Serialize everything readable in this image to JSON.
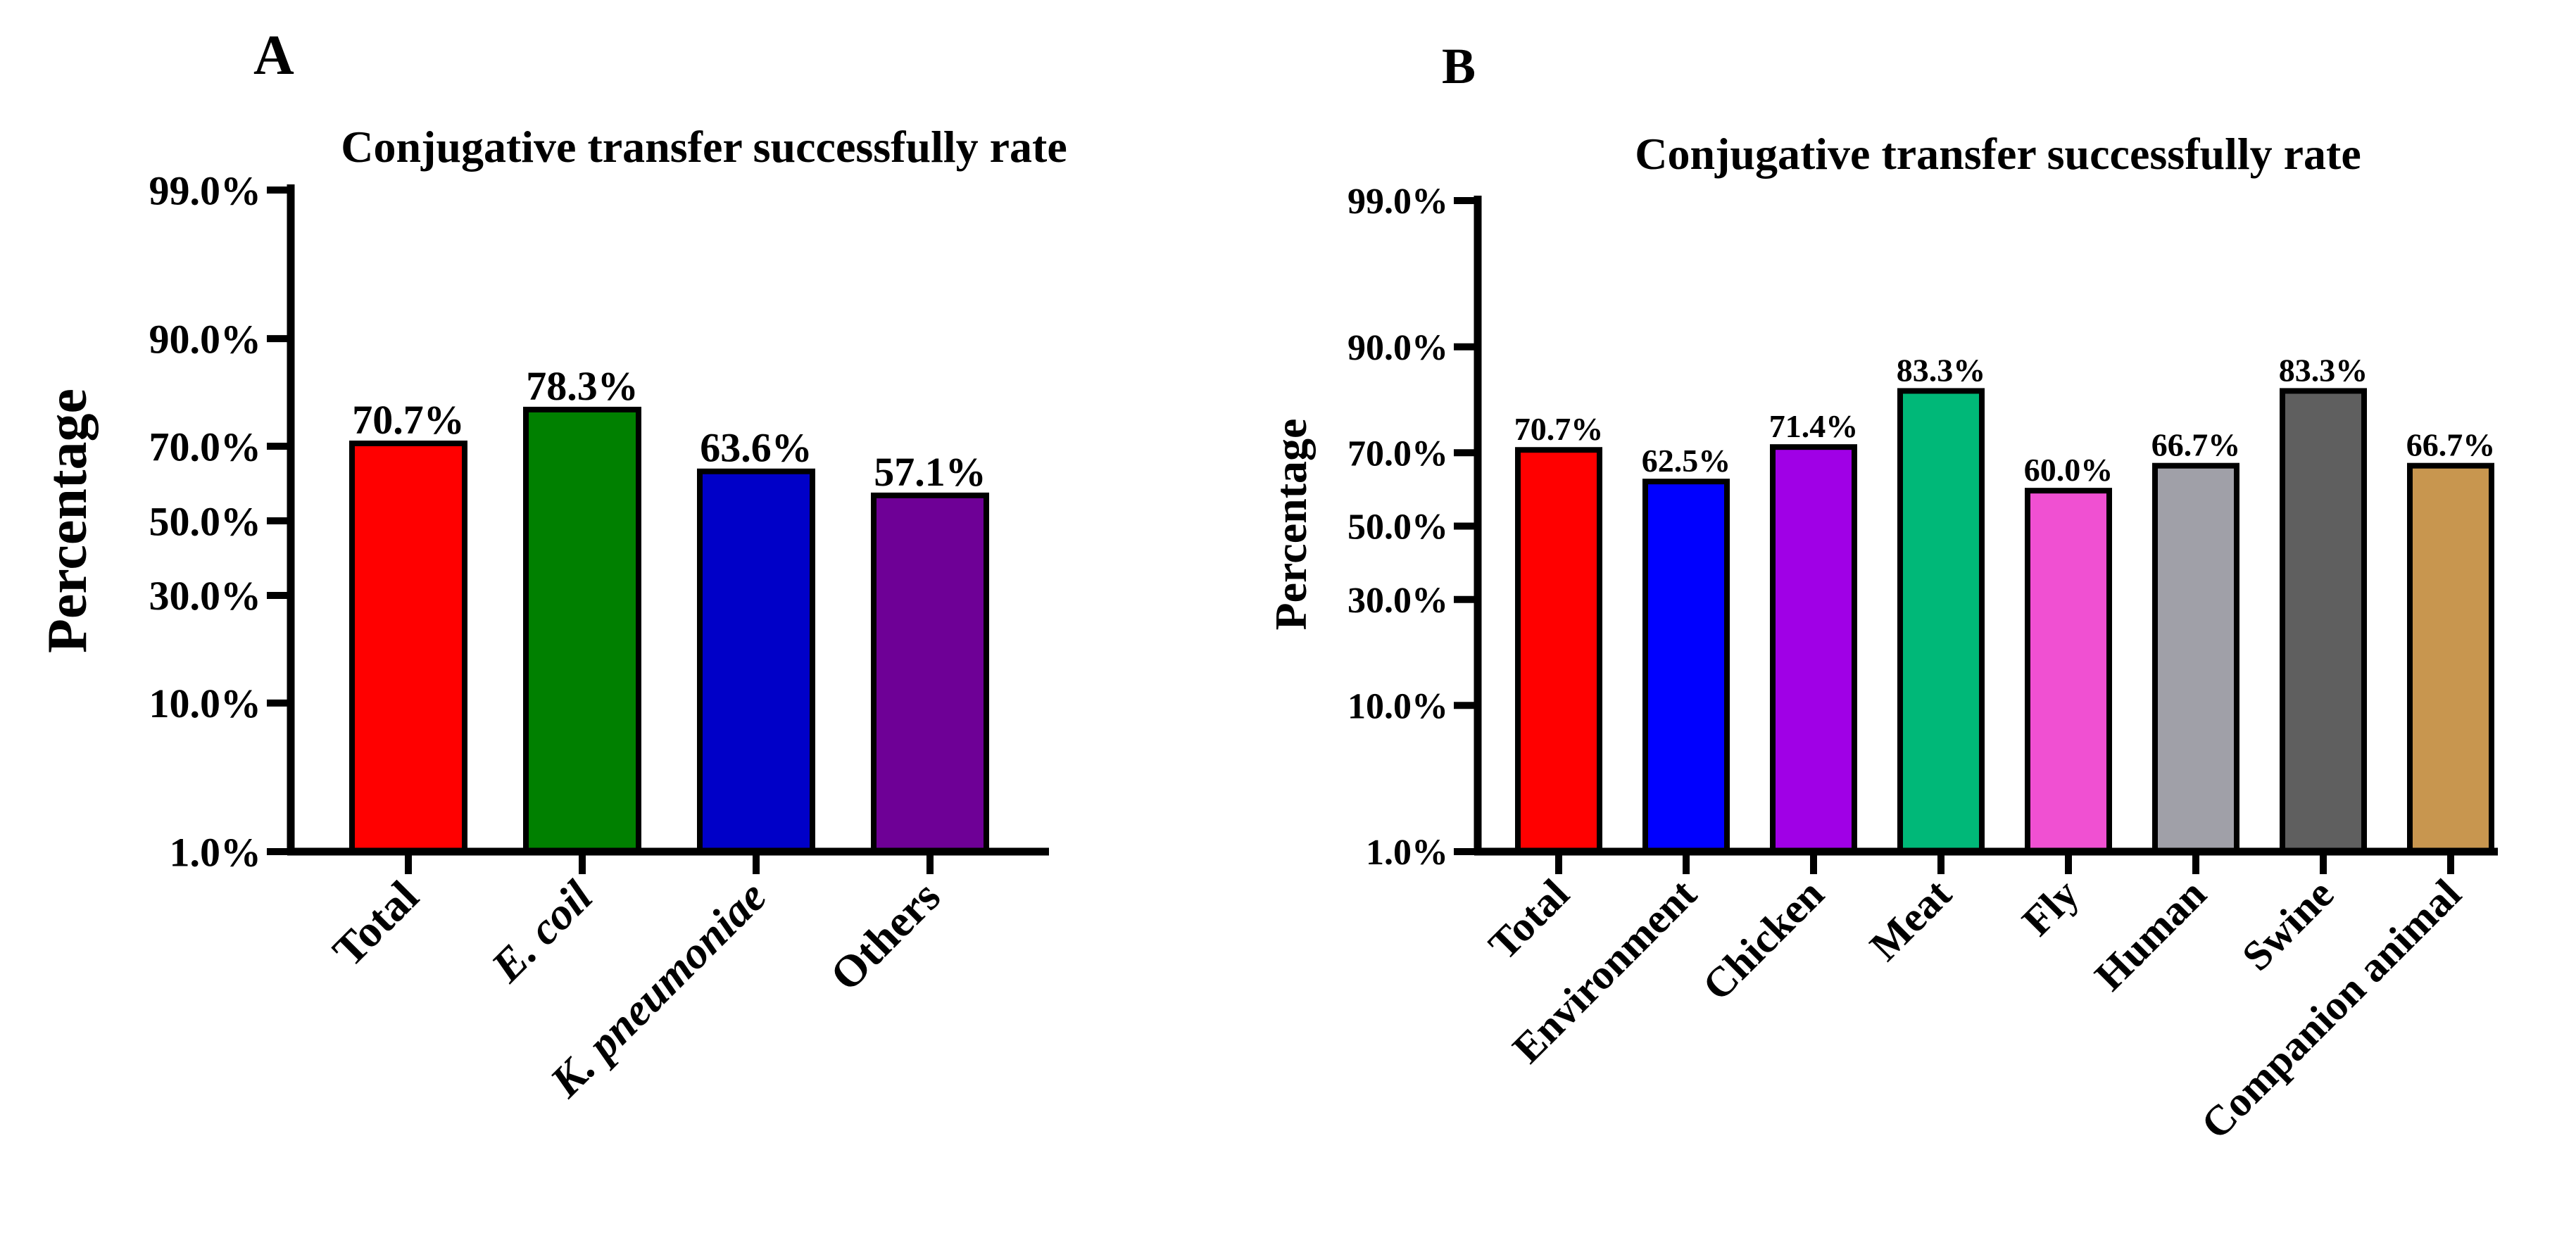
{
  "chart_data": [
    {
      "type": "bar",
      "panel_label": "A",
      "title": "Conjugative transfer successfully rate",
      "xlabel": "",
      "ylabel": "Percentage",
      "y_scale": "probability",
      "ylim": [
        1.0,
        99.0
      ],
      "y_ticks": [
        1.0,
        10.0,
        30.0,
        50.0,
        70.0,
        90.0,
        99.0
      ],
      "y_tick_labels": [
        "1.0%",
        "10.0%",
        "30.0%",
        "50.0%",
        "70.0%",
        "90.0%",
        "99.0%"
      ],
      "categories": [
        "Total",
        "E. coil",
        "K. pneumoniae",
        "Others"
      ],
      "category_italic": [
        false,
        true,
        true,
        false
      ],
      "values": [
        70.7,
        78.3,
        63.6,
        57.1
      ],
      "value_labels": [
        "70.7%",
        "78.3%",
        "63.6%",
        "57.1%"
      ],
      "colors": [
        "#ff0000",
        "#008000",
        "#0000c8",
        "#6e0096"
      ]
    },
    {
      "type": "bar",
      "panel_label": "B",
      "title": "Conjugative transfer successfully rate",
      "xlabel": "",
      "ylabel": "Percentage",
      "y_scale": "probability",
      "ylim": [
        1.0,
        99.0
      ],
      "y_ticks": [
        1.0,
        10.0,
        30.0,
        50.0,
        70.0,
        90.0,
        99.0
      ],
      "y_tick_labels": [
        "1.0%",
        "10.0%",
        "30.0%",
        "50.0%",
        "70.0%",
        "90.0%",
        "99.0%"
      ],
      "categories": [
        "Total",
        "Environment",
        "Chicken",
        "Meat",
        "Fly",
        "Human",
        "Swine",
        "Companion animal"
      ],
      "category_italic": [
        false,
        false,
        false,
        false,
        false,
        false,
        false,
        false
      ],
      "values": [
        70.7,
        62.5,
        71.4,
        83.3,
        60.0,
        66.7,
        83.3,
        66.7
      ],
      "value_labels": [
        "70.7%",
        "62.5%",
        "71.4%",
        "83.3%",
        "60.0%",
        "66.7%",
        "83.3%",
        "66.7%"
      ],
      "colors": [
        "#ff0000",
        "#0000ff",
        "#a000e6",
        "#00b878",
        "#f050d2",
        "#a0a0a8",
        "#5f5f5f",
        "#c8964f"
      ]
    }
  ]
}
